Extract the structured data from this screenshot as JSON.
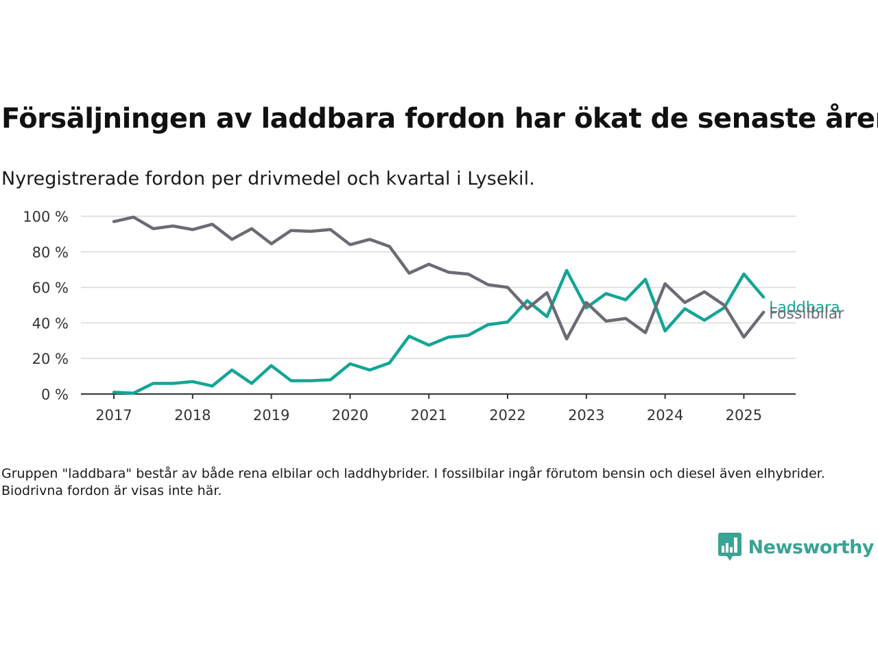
{
  "title": "Försäljningen av laddbara fordon har ökat de senaste åren",
  "subtitle": "Nyregistrerade fordon per drivmedel och kvartal i Lysekil.",
  "note": "Gruppen \"laddbara\" består av både rena elbilar och laddhybrider. I fossilbilar ingår förutom bensin och diesel även elhybrider. Biodrivna fordon är visas inte här.",
  "brand": {
    "name": "Newsworthy",
    "color": "#3aa394",
    "icon": "bar-chart-speech-bubble-icon"
  },
  "chart_data": {
    "type": "line",
    "y_tick_labels": [
      "0 %",
      "20 %",
      "40 %",
      "60 %",
      "80 %",
      "100 %"
    ],
    "ylim": [
      0,
      100
    ],
    "x_tick_labels": [
      "2017",
      "2018",
      "2019",
      "2020",
      "2021",
      "2022",
      "2023",
      "2024",
      "2025"
    ],
    "grid": true,
    "x": [
      "2017-Q1",
      "2017-Q2",
      "2017-Q3",
      "2017-Q4",
      "2018-Q1",
      "2018-Q2",
      "2018-Q3",
      "2018-Q4",
      "2019-Q1",
      "2019-Q2",
      "2019-Q3",
      "2019-Q4",
      "2020-Q1",
      "2020-Q2",
      "2020-Q3",
      "2020-Q4",
      "2021-Q1",
      "2021-Q2",
      "2021-Q3",
      "2021-Q4",
      "2022-Q1",
      "2022-Q2",
      "2022-Q3",
      "2022-Q4",
      "2023-Q1",
      "2023-Q2",
      "2023-Q3",
      "2023-Q4",
      "2024-Q1",
      "2024-Q2",
      "2024-Q3",
      "2024-Q4",
      "2025-Q1",
      "2025-Q2"
    ],
    "series": [
      {
        "name": "Fossilbilar",
        "color": "#6d6a73",
        "values": [
          97,
          99.5,
          93,
          94.5,
          92.5,
          95.5,
          87,
          93,
          84.5,
          92,
          91.5,
          92.5,
          84,
          87,
          83,
          68,
          73,
          68.5,
          67.5,
          61.5,
          60,
          48,
          57,
          31,
          51.5,
          41,
          42.5,
          34.5,
          62,
          51.5,
          57.5,
          50,
          32,
          46
        ]
      },
      {
        "name": "Laddbara",
        "color": "#13a595",
        "values": [
          1,
          0.5,
          6,
          6,
          7,
          4.5,
          13.5,
          6,
          16,
          7.5,
          7.5,
          8,
          17,
          13.5,
          17.5,
          32.5,
          27.5,
          32,
          33,
          39,
          40.5,
          52.5,
          43.5,
          69.5,
          48.5,
          56.5,
          53,
          64.5,
          35.5,
          48,
          41.5,
          48.5,
          67.5,
          54.5
        ]
      }
    ]
  }
}
